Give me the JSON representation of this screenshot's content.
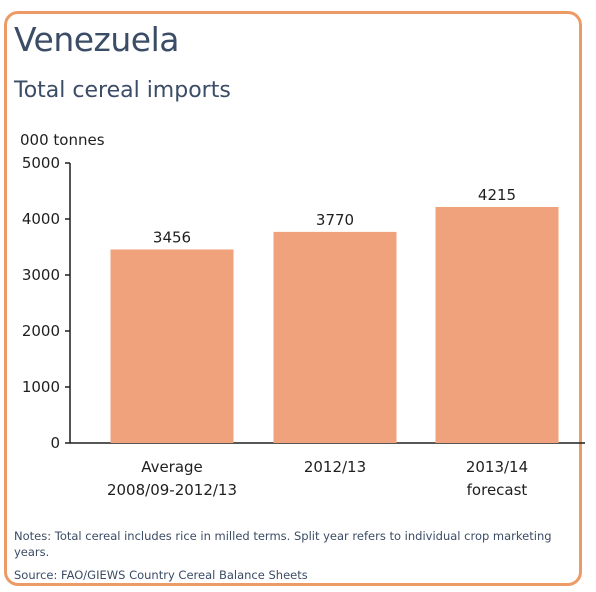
{
  "header": {
    "title": "Venezuela",
    "subtitle": "Total cereal imports"
  },
  "footer": {
    "notes": "Notes: Total cereal includes rice in milled terms. Split year refers to individual crop marketing years.",
    "source": "Source: FAO/GIEWS Country Cereal Balance Sheets"
  },
  "colors": {
    "border": "#ec9a66",
    "bar": "#f0a27c",
    "heading": "#3b4c66"
  },
  "chart_data": {
    "type": "bar",
    "title": "Total cereal imports",
    "ylabel": "000 tonnes",
    "xlabel": "",
    "ylim": [
      0,
      5000
    ],
    "yticks": [
      0,
      1000,
      2000,
      3000,
      4000,
      5000
    ],
    "grid": false,
    "categories": [
      [
        "Average",
        "2008/09-2012/13"
      ],
      [
        "2012/13"
      ],
      [
        "2013/14",
        "forecast"
      ]
    ],
    "values": [
      3456,
      3770,
      4215
    ],
    "data_labels": [
      "3456",
      "3770",
      "4215"
    ]
  }
}
